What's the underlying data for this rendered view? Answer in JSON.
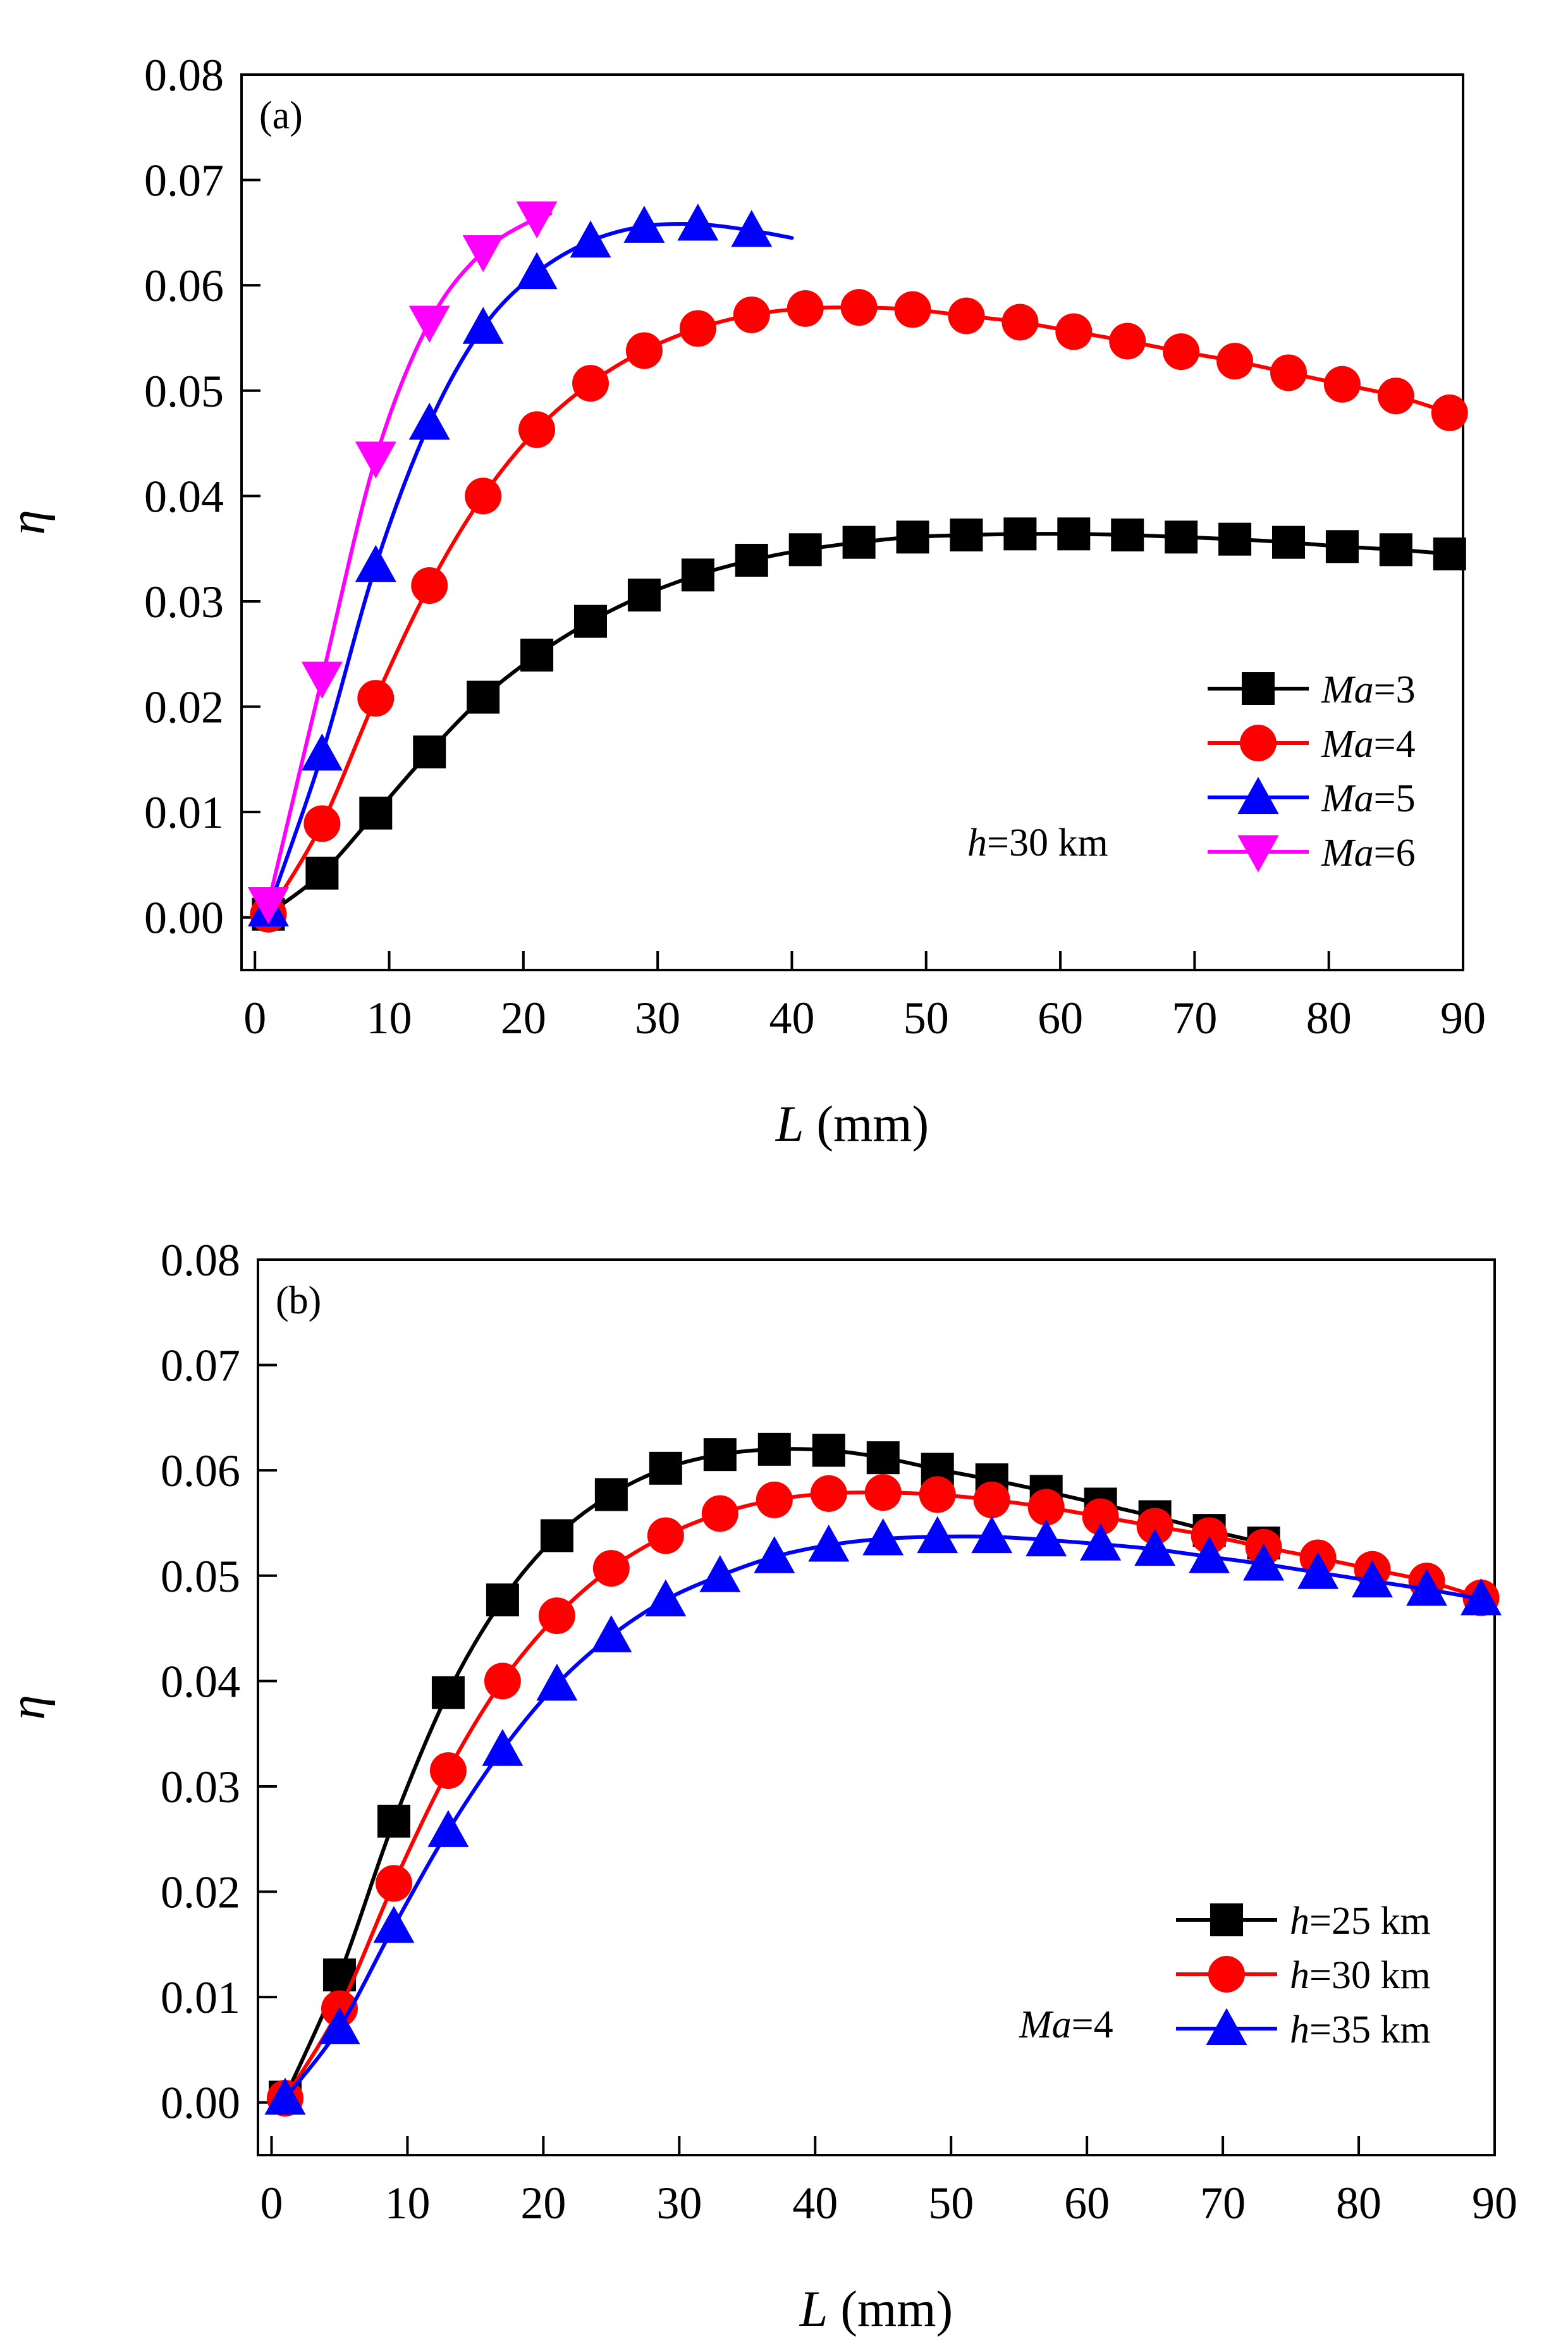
{
  "chart_data": [
    {
      "type": "line",
      "panel_label": "(a)",
      "xlabel": "L (mm)",
      "xlabel_var": "L",
      "xlabel_unit": " (mm)",
      "ylabel": "η",
      "xlim": [
        -1,
        90
      ],
      "ylim": [
        -0.005,
        0.08
      ],
      "xticks": [
        0,
        10,
        20,
        30,
        40,
        50,
        60,
        70,
        80,
        90
      ],
      "xtick_labels": [
        "0",
        "10",
        "20",
        "30",
        "40",
        "50",
        "60",
        "70",
        "80",
        "90"
      ],
      "yticks": [
        0,
        0.01,
        0.02,
        0.03,
        0.04,
        0.05,
        0.06,
        0.07,
        0.08
      ],
      "ytick_labels": [
        "0.00",
        "0.01",
        "0.02",
        "0.03",
        "0.04",
        "0.05",
        "0.06",
        "0.07",
        "0.08"
      ],
      "annotation": "h=30 km",
      "annotation_parts": {
        "var": "h",
        "rest": "=30 km"
      },
      "legend_position": "bottom-right",
      "series": [
        {
          "name": "Ma=3",
          "legend_var": "Ma",
          "legend_rest": "=3",
          "color": "#000000",
          "marker": "square",
          "x": [
            1,
            5,
            9,
            13,
            17,
            21,
            25,
            29,
            33,
            37,
            41,
            45,
            49,
            53,
            57,
            61,
            65,
            69,
            73,
            77,
            81,
            85,
            89
          ],
          "y": [
            0.0003,
            0.0042,
            0.0099,
            0.0157,
            0.0209,
            0.0249,
            0.0281,
            0.0306,
            0.0325,
            0.0339,
            0.0349,
            0.0356,
            0.0361,
            0.0363,
            0.0364,
            0.0364,
            0.0363,
            0.0361,
            0.0359,
            0.0356,
            0.0352,
            0.0349,
            0.0345
          ]
        },
        {
          "name": "Ma=4",
          "legend_var": "Ma",
          "legend_rest": "=4",
          "color": "#ff0000",
          "marker": "circle",
          "x": [
            1,
            5,
            9,
            13,
            17,
            21,
            25,
            29,
            33,
            37,
            41,
            45,
            49,
            53,
            57,
            61,
            65,
            69,
            73,
            77,
            81,
            85,
            89
          ],
          "y": [
            0.0003,
            0.0089,
            0.0208,
            0.0315,
            0.04,
            0.0463,
            0.0507,
            0.0538,
            0.0559,
            0.0572,
            0.0578,
            0.0579,
            0.0577,
            0.0571,
            0.0565,
            0.0556,
            0.0547,
            0.0537,
            0.0528,
            0.0517,
            0.0506,
            0.0495,
            0.0479
          ]
        },
        {
          "name": "Ma=5",
          "legend_var": "Ma",
          "legend_rest": "=5",
          "color": "#0000ff",
          "marker": "triangle-up",
          "x": [
            1,
            5,
            9,
            13,
            17,
            21,
            25,
            29,
            33,
            37
          ],
          "y": [
            0.0007,
            0.0155,
            0.0334,
            0.0469,
            0.056,
            0.0612,
            0.0642,
            0.0656,
            0.0658,
            0.0652
          ],
          "line_end": [
            40,
            0.0645
          ]
        },
        {
          "name": "Ma=6",
          "legend_var": "Ma",
          "legend_rest": "=6",
          "color": "#ff00ff",
          "marker": "triangle-down",
          "x": [
            1,
            5,
            9,
            13,
            17,
            21
          ],
          "y": [
            0.0013,
            0.0227,
            0.0436,
            0.0565,
            0.0632,
            0.0664
          ],
          "line_end": [
            22,
            0.0668
          ]
        }
      ]
    },
    {
      "type": "line",
      "panel_label": "(b)",
      "xlabel": "L (mm)",
      "xlabel_var": "L",
      "xlabel_unit": " (mm)",
      "ylabel": "η",
      "xlim": [
        -1,
        90
      ],
      "ylim": [
        -0.005,
        0.08
      ],
      "xticks": [
        0,
        10,
        20,
        30,
        40,
        50,
        60,
        70,
        80,
        90
      ],
      "xtick_labels": [
        "0",
        "10",
        "20",
        "30",
        "40",
        "50",
        "60",
        "70",
        "80",
        "90"
      ],
      "yticks": [
        0,
        0.01,
        0.02,
        0.03,
        0.04,
        0.05,
        0.06,
        0.07,
        0.08
      ],
      "ytick_labels": [
        "0.00",
        "0.01",
        "0.02",
        "0.03",
        "0.04",
        "0.05",
        "0.06",
        "0.07",
        "0.08"
      ],
      "annotation": "Ma=4",
      "annotation_parts": {
        "var": "Ma",
        "rest": "=4"
      },
      "legend_position": "bottom-right",
      "series": [
        {
          "name": "h=25 km",
          "legend_var": "h",
          "legend_rest": "=25 km",
          "color": "#000000",
          "marker": "square",
          "x": [
            1,
            5,
            9,
            13,
            17,
            21,
            25,
            29,
            33,
            37,
            41,
            45,
            49,
            53,
            57,
            61,
            65,
            69,
            73
          ],
          "y": [
            0.0005,
            0.0121,
            0.0267,
            0.0389,
            0.0477,
            0.0538,
            0.0577,
            0.0602,
            0.0615,
            0.062,
            0.0619,
            0.0612,
            0.0601,
            0.0591,
            0.058,
            0.0568,
            0.0556,
            0.0543,
            0.0531
          ]
        },
        {
          "name": "h=30 km",
          "legend_var": "h",
          "legend_rest": "=30 km",
          "color": "#ff0000",
          "marker": "circle",
          "x": [
            1,
            5,
            9,
            13,
            17,
            21,
            25,
            29,
            33,
            37,
            41,
            45,
            49,
            53,
            57,
            61,
            65,
            69,
            73,
            77,
            81,
            85,
            89
          ],
          "y": [
            0.0004,
            0.0089,
            0.0208,
            0.0315,
            0.04,
            0.0462,
            0.0507,
            0.0538,
            0.0559,
            0.0572,
            0.0578,
            0.0579,
            0.0577,
            0.0572,
            0.0565,
            0.0556,
            0.0547,
            0.0538,
            0.0527,
            0.0517,
            0.0506,
            0.0495,
            0.0479
          ]
        },
        {
          "name": "h=35 km",
          "legend_var": "h",
          "legend_rest": "=35 km",
          "color": "#0000ff",
          "marker": "triangle-up",
          "x": [
            1,
            5,
            9,
            13,
            17,
            21,
            25,
            29,
            33,
            37,
            41,
            45,
            49,
            53,
            57,
            61,
            65,
            69,
            73,
            77,
            81,
            85,
            89
          ],
          "y": [
            0.0004,
            0.0071,
            0.0167,
            0.0258,
            0.0335,
            0.0397,
            0.0443,
            0.0477,
            0.05,
            0.0518,
            0.0529,
            0.0535,
            0.0537,
            0.0537,
            0.0534,
            0.053,
            0.0525,
            0.0518,
            0.0511,
            0.0503,
            0.0495,
            0.0487,
            0.0478
          ]
        }
      ]
    }
  ]
}
